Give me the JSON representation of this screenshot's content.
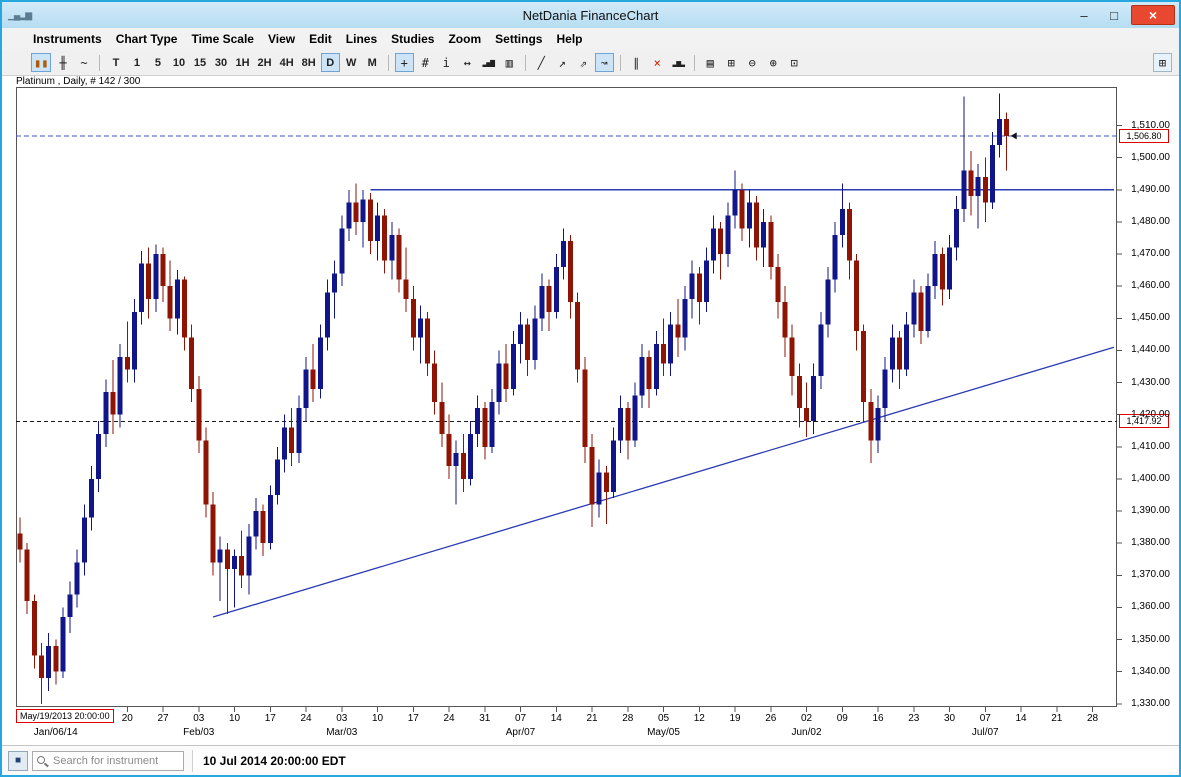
{
  "window": {
    "title": "NetDania FinanceChart",
    "app_icon_glyph": "▁▄▂▆",
    "minimize_glyph": "–",
    "maximize_glyph": "□",
    "close_glyph": "×"
  },
  "menu": {
    "items": [
      "Instruments",
      "Chart Type",
      "Time Scale",
      "View",
      "Edit",
      "Lines",
      "Studies",
      "Zoom",
      "Settings",
      "Help"
    ]
  },
  "toolbar": {
    "groups": [
      {
        "buttons": [
          {
            "name": "candlestick-chart-button",
            "glyph": "▮▮",
            "color": "#b25a00",
            "selected": true
          },
          {
            "name": "bar-chart-button",
            "glyph": "╫",
            "color": "#222222"
          },
          {
            "name": "line-chart-button",
            "glyph": "~",
            "color": "#222222"
          }
        ]
      },
      {
        "buttons": [
          {
            "name": "timeframe-tick",
            "label": "T"
          },
          {
            "name": "timeframe-1min",
            "label": "1"
          },
          {
            "name": "timeframe-5min",
            "label": "5"
          },
          {
            "name": "timeframe-10min",
            "label": "10"
          },
          {
            "name": "timeframe-15min",
            "label": "15"
          },
          {
            "name": "timeframe-30min",
            "label": "30"
          },
          {
            "name": "timeframe-1hour",
            "label": "1H"
          },
          {
            "name": "timeframe-2hour",
            "label": "2H"
          },
          {
            "name": "timeframe-4hour",
            "label": "4H"
          },
          {
            "name": "timeframe-8hour",
            "label": "8H"
          },
          {
            "name": "timeframe-daily",
            "label": "D",
            "selected": true
          },
          {
            "name": "timeframe-weekly",
            "label": "W"
          },
          {
            "name": "timeframe-monthly",
            "label": "M"
          }
        ]
      },
      {
        "buttons": [
          {
            "name": "crosshair-button",
            "glyph": "+",
            "selected": true
          },
          {
            "name": "grid-button",
            "glyph": "#"
          },
          {
            "name": "info-button",
            "glyph": "i"
          },
          {
            "name": "horizontal-scroll-button",
            "glyph": "↔"
          },
          {
            "name": "volume-button",
            "glyph": "▂▄▆"
          },
          {
            "name": "quote-list-button",
            "glyph": "▥"
          }
        ]
      },
      {
        "buttons": [
          {
            "name": "trend-line-button",
            "glyph": "╱"
          },
          {
            "name": "trend-ray-button",
            "glyph": "↗"
          },
          {
            "name": "channel-button",
            "glyph": "⇗"
          },
          {
            "name": "pointer-line-button",
            "glyph": "↝",
            "selected": true
          }
        ]
      },
      {
        "buttons": [
          {
            "name": "parallel-lines-button",
            "glyph": "∥"
          },
          {
            "name": "delete-lines-button",
            "glyph": "×",
            "color": "#d42300"
          },
          {
            "name": "show-all-bars-button",
            "glyph": "▂▅▂"
          }
        ]
      },
      {
        "buttons": [
          {
            "name": "print-button",
            "glyph": "▤"
          },
          {
            "name": "print-preview-button",
            "glyph": "⊞"
          },
          {
            "name": "zoom-out-button",
            "glyph": "⊖"
          },
          {
            "name": "zoom-in-button",
            "glyph": "⊕"
          },
          {
            "name": "zoom-fit-button",
            "glyph": "⊡"
          }
        ]
      }
    ],
    "expand_button": {
      "name": "expand-panel-button",
      "glyph": "⊞"
    }
  },
  "chart": {
    "instrument_label": "Platinum , Daily, # 142 / 300",
    "last_price_label": "1,506.80",
    "alert_price_label": "1,417.92",
    "start_date_label": "May/19/2013 20:00:00"
  },
  "status": {
    "grid_button_glyph": "■",
    "search_placeholder": "Search for instrument",
    "timestamp": "10 Jul 2014 20:00:00 EDT"
  },
  "chart_data": {
    "type": "candlestick",
    "title": "Platinum , Daily, # 142 / 300",
    "instrument": "Platinum",
    "timeframe": "Daily",
    "bar_counter": "# 142 / 300",
    "last_price": 1506.8,
    "up_color": "#10158a",
    "down_color": "#8e1404",
    "y_axis": {
      "min": 1329,
      "max": 1522,
      "tick_values": [
        1510,
        1500,
        1490,
        1480,
        1470,
        1460,
        1450,
        1440,
        1430,
        1420,
        1410,
        1400,
        1390,
        1380,
        1370,
        1360,
        1350,
        1340,
        1330
      ],
      "tick_labels": [
        "1,510.00",
        "1,500.00",
        "1,490.00",
        "1,480.00",
        "1,470.00",
        "1,460.00",
        "1,450.00",
        "1,440.00",
        "1,430.00",
        "1,420.00",
        "1,410.00",
        "1,400.00",
        "1,390.00",
        "1,380.00",
        "1,370.00",
        "1,360.00",
        "1,350.00",
        "1,340.00",
        "1,330.00"
      ]
    },
    "x_axis": {
      "day_ticks": [
        {
          "label": "20",
          "i": 15
        },
        {
          "label": "27",
          "i": 20
        },
        {
          "label": "03",
          "i": 25
        },
        {
          "label": "10",
          "i": 30
        },
        {
          "label": "17",
          "i": 35
        },
        {
          "label": "24",
          "i": 40
        },
        {
          "label": "03",
          "i": 45
        },
        {
          "label": "10",
          "i": 50
        },
        {
          "label": "17",
          "i": 55
        },
        {
          "label": "24",
          "i": 60
        },
        {
          "label": "31",
          "i": 65
        },
        {
          "label": "07",
          "i": 70
        },
        {
          "label": "14",
          "i": 75
        },
        {
          "label": "21",
          "i": 80
        },
        {
          "label": "28",
          "i": 85
        },
        {
          "label": "05",
          "i": 90
        },
        {
          "label": "12",
          "i": 95
        },
        {
          "label": "19",
          "i": 100
        },
        {
          "label": "26",
          "i": 105
        },
        {
          "label": "02",
          "i": 110
        },
        {
          "label": "09",
          "i": 115
        },
        {
          "label": "16",
          "i": 120
        },
        {
          "label": "23",
          "i": 125
        },
        {
          "label": "30",
          "i": 130
        },
        {
          "label": "07",
          "i": 135
        },
        {
          "label": "14",
          "i": 140
        },
        {
          "label": "21",
          "i": 145
        },
        {
          "label": "28",
          "i": 150
        }
      ],
      "month_ticks": [
        {
          "label": "Jan/06/14",
          "i": 5
        },
        {
          "label": "Feb/03",
          "i": 25
        },
        {
          "label": "Mar/03",
          "i": 45
        },
        {
          "label": "Apr/07",
          "i": 70
        },
        {
          "label": "May/05",
          "i": 90
        },
        {
          "label": "Jun/02",
          "i": 110
        },
        {
          "label": "Jul/07",
          "i": 135
        }
      ]
    },
    "last_price_line": {
      "price": 1506.8,
      "color": "#4553cf",
      "style": "dashed"
    },
    "alert_line": {
      "price": 1417.92,
      "color": "#1a1a1a",
      "style": "dashed"
    },
    "horizontal_line": {
      "price": 1490,
      "from_index": 49,
      "to_index": 153,
      "color": "#2b3bb3"
    },
    "trendline": {
      "from_index": 27,
      "from_price": 1357,
      "to_index": 153,
      "to_price": 1441,
      "color": "#2b3bb3"
    },
    "candles": [
      [
        1383,
        1388,
        1374,
        1378
      ],
      [
        1378,
        1380,
        1358,
        1362
      ],
      [
        1362,
        1364,
        1341,
        1345
      ],
      [
        1345,
        1349,
        1330,
        1338
      ],
      [
        1338,
        1352,
        1334,
        1348
      ],
      [
        1348,
        1350,
        1336,
        1340
      ],
      [
        1340,
        1360,
        1338,
        1357
      ],
      [
        1357,
        1368,
        1352,
        1364
      ],
      [
        1364,
        1378,
        1360,
        1374
      ],
      [
        1374,
        1392,
        1370,
        1388
      ],
      [
        1388,
        1404,
        1384,
        1400
      ],
      [
        1400,
        1418,
        1396,
        1414
      ],
      [
        1414,
        1431,
        1410,
        1427
      ],
      [
        1427,
        1437,
        1414,
        1420
      ],
      [
        1420,
        1442,
        1416,
        1438
      ],
      [
        1438,
        1449,
        1430,
        1434
      ],
      [
        1434,
        1456,
        1430,
        1452
      ],
      [
        1452,
        1471,
        1448,
        1467
      ],
      [
        1467,
        1472,
        1450,
        1456
      ],
      [
        1456,
        1473,
        1452,
        1470
      ],
      [
        1470,
        1472,
        1455,
        1460
      ],
      [
        1460,
        1468,
        1446,
        1450
      ],
      [
        1450,
        1465,
        1445,
        1462
      ],
      [
        1462,
        1463,
        1440,
        1444
      ],
      [
        1444,
        1448,
        1424,
        1428
      ],
      [
        1428,
        1432,
        1408,
        1412
      ],
      [
        1412,
        1416,
        1388,
        1392
      ],
      [
        1392,
        1396,
        1370,
        1374
      ],
      [
        1374,
        1382,
        1362,
        1378
      ],
      [
        1378,
        1380,
        1358,
        1372
      ],
      [
        1372,
        1378,
        1360,
        1376
      ],
      [
        1376,
        1384,
        1366,
        1370
      ],
      [
        1370,
        1386,
        1364,
        1382
      ],
      [
        1382,
        1394,
        1378,
        1390
      ],
      [
        1390,
        1392,
        1376,
        1380
      ],
      [
        1380,
        1398,
        1378,
        1395
      ],
      [
        1395,
        1410,
        1392,
        1406
      ],
      [
        1406,
        1420,
        1402,
        1416
      ],
      [
        1416,
        1422,
        1404,
        1408
      ],
      [
        1408,
        1426,
        1405,
        1422
      ],
      [
        1422,
        1438,
        1418,
        1434
      ],
      [
        1434,
        1442,
        1424,
        1428
      ],
      [
        1428,
        1448,
        1425,
        1444
      ],
      [
        1444,
        1462,
        1440,
        1458
      ],
      [
        1458,
        1468,
        1450,
        1464
      ],
      [
        1464,
        1482,
        1460,
        1478
      ],
      [
        1478,
        1490,
        1474,
        1486
      ],
      [
        1486,
        1492,
        1476,
        1480
      ],
      [
        1480,
        1490,
        1472,
        1487
      ],
      [
        1487,
        1489,
        1470,
        1474
      ],
      [
        1474,
        1486,
        1468,
        1482
      ],
      [
        1482,
        1484,
        1464,
        1468
      ],
      [
        1468,
        1480,
        1462,
        1476
      ],
      [
        1476,
        1478,
        1458,
        1462
      ],
      [
        1462,
        1472,
        1452,
        1456
      ],
      [
        1456,
        1460,
        1440,
        1444
      ],
      [
        1444,
        1454,
        1436,
        1450
      ],
      [
        1450,
        1452,
        1432,
        1436
      ],
      [
        1436,
        1440,
        1420,
        1424
      ],
      [
        1424,
        1430,
        1410,
        1414
      ],
      [
        1414,
        1420,
        1400,
        1404
      ],
      [
        1404,
        1412,
        1392,
        1408
      ],
      [
        1408,
        1414,
        1396,
        1400
      ],
      [
        1400,
        1418,
        1398,
        1414
      ],
      [
        1414,
        1426,
        1410,
        1422
      ],
      [
        1422,
        1424,
        1406,
        1410
      ],
      [
        1410,
        1428,
        1408,
        1424
      ],
      [
        1424,
        1440,
        1420,
        1436
      ],
      [
        1436,
        1442,
        1424,
        1428
      ],
      [
        1428,
        1446,
        1426,
        1442
      ],
      [
        1442,
        1452,
        1436,
        1448
      ],
      [
        1448,
        1450,
        1432,
        1437
      ],
      [
        1437,
        1454,
        1434,
        1450
      ],
      [
        1450,
        1464,
        1446,
        1460
      ],
      [
        1460,
        1462,
        1446,
        1452
      ],
      [
        1452,
        1470,
        1450,
        1466
      ],
      [
        1466,
        1478,
        1462,
        1474
      ],
      [
        1474,
        1476,
        1450,
        1455
      ],
      [
        1455,
        1458,
        1430,
        1434
      ],
      [
        1434,
        1438,
        1405,
        1410
      ],
      [
        1410,
        1414,
        1385,
        1392
      ],
      [
        1392,
        1406,
        1388,
        1402
      ],
      [
        1402,
        1404,
        1386,
        1396
      ],
      [
        1396,
        1416,
        1394,
        1412
      ],
      [
        1412,
        1426,
        1408,
        1422
      ],
      [
        1422,
        1424,
        1406,
        1412
      ],
      [
        1412,
        1430,
        1410,
        1426
      ],
      [
        1426,
        1442,
        1422,
        1438
      ],
      [
        1438,
        1440,
        1422,
        1428
      ],
      [
        1428,
        1446,
        1426,
        1442
      ],
      [
        1442,
        1450,
        1432,
        1436
      ],
      [
        1436,
        1452,
        1432,
        1448
      ],
      [
        1448,
        1456,
        1438,
        1444
      ],
      [
        1444,
        1460,
        1440,
        1456
      ],
      [
        1456,
        1468,
        1450,
        1464
      ],
      [
        1464,
        1466,
        1448,
        1455
      ],
      [
        1455,
        1472,
        1452,
        1468
      ],
      [
        1468,
        1482,
        1464,
        1478
      ],
      [
        1478,
        1480,
        1462,
        1470
      ],
      [
        1470,
        1486,
        1466,
        1482
      ],
      [
        1482,
        1496,
        1478,
        1490
      ],
      [
        1490,
        1492,
        1474,
        1478
      ],
      [
        1478,
        1490,
        1472,
        1486
      ],
      [
        1486,
        1488,
        1468,
        1472
      ],
      [
        1472,
        1484,
        1466,
        1480
      ],
      [
        1480,
        1482,
        1462,
        1466
      ],
      [
        1466,
        1470,
        1450,
        1455
      ],
      [
        1455,
        1460,
        1438,
        1444
      ],
      [
        1444,
        1448,
        1426,
        1432
      ],
      [
        1432,
        1436,
        1416,
        1422
      ],
      [
        1422,
        1430,
        1413,
        1418
      ],
      [
        1418,
        1436,
        1414,
        1432
      ],
      [
        1432,
        1452,
        1428,
        1448
      ],
      [
        1448,
        1466,
        1444,
        1462
      ],
      [
        1462,
        1480,
        1458,
        1476
      ],
      [
        1476,
        1492,
        1472,
        1484
      ],
      [
        1484,
        1486,
        1462,
        1468
      ],
      [
        1468,
        1470,
        1440,
        1446
      ],
      [
        1446,
        1448,
        1418,
        1424
      ],
      [
        1424,
        1428,
        1405,
        1412
      ],
      [
        1412,
        1426,
        1408,
        1422
      ],
      [
        1422,
        1438,
        1418,
        1434
      ],
      [
        1434,
        1448,
        1430,
        1444
      ],
      [
        1444,
        1446,
        1428,
        1434
      ],
      [
        1434,
        1452,
        1432,
        1448
      ],
      [
        1448,
        1462,
        1444,
        1458
      ],
      [
        1458,
        1460,
        1442,
        1446
      ],
      [
        1446,
        1464,
        1444,
        1460
      ],
      [
        1460,
        1474,
        1456,
        1470
      ],
      [
        1470,
        1472,
        1454,
        1459
      ],
      [
        1459,
        1476,
        1456,
        1472
      ],
      [
        1472,
        1488,
        1468,
        1484
      ],
      [
        1484,
        1519,
        1480,
        1496
      ],
      [
        1496,
        1502,
        1482,
        1488
      ],
      [
        1488,
        1498,
        1478,
        1494
      ],
      [
        1494,
        1500,
        1480,
        1486
      ],
      [
        1486,
        1508,
        1484,
        1504
      ],
      [
        1504,
        1520,
        1500,
        1512
      ],
      [
        1512,
        1514,
        1496,
        1506.8
      ]
    ]
  }
}
